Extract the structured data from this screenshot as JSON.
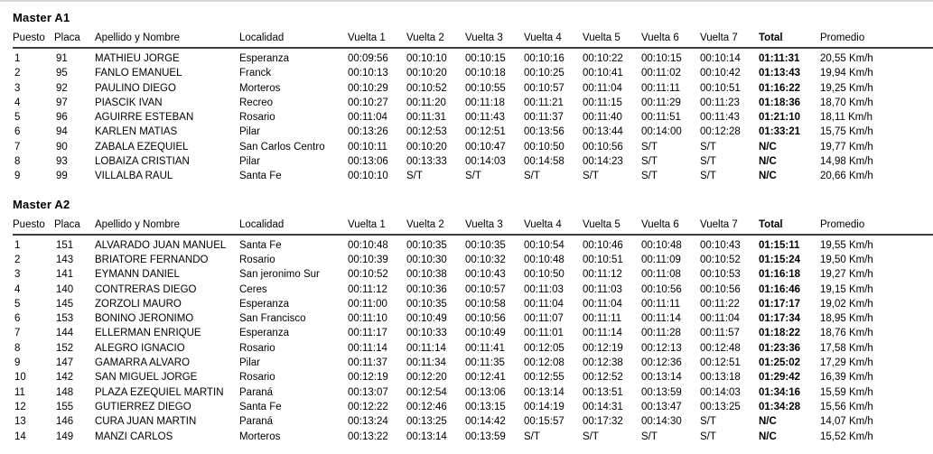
{
  "page": {
    "colors": {
      "text": "#000000",
      "header_rule": "#3d3d3d",
      "top_border": "#d8d8d8",
      "background": "#ffffff"
    },
    "sections": [
      {
        "title": "Master A1",
        "columns": [
          "Puesto",
          "Placa",
          "Apellido y Nombre",
          "Localidad",
          "Vuelta 1",
          "Vuelta 2",
          "Vuelta 3",
          "Vuelta 4",
          "Vuelta 5",
          "Vuelta 6",
          "Vuelta 7",
          "Total",
          "Promedio"
        ],
        "rows": [
          [
            "1",
            "91",
            "MATHIEU JORGE",
            "Esperanza",
            "00:09:56",
            "00:10:10",
            "00:10:15",
            "00:10:16",
            "00:10:22",
            "00:10:15",
            "00:10:14",
            "01:11:31",
            "20,55 Km/h"
          ],
          [
            "2",
            "95",
            "FANLO EMANUEL",
            "Franck",
            "00:10:13",
            "00:10:20",
            "00:10:18",
            "00:10:25",
            "00:10:41",
            "00:11:02",
            "00:10:42",
            "01:13:43",
            "19,94 Km/h"
          ],
          [
            "3",
            "92",
            "PAULINO DIEGO",
            "Morteros",
            "00:10:29",
            "00:10:52",
            "00:10:55",
            "00:10:57",
            "00:11:04",
            "00:11:11",
            "00:10:51",
            "01:16:22",
            "19,25 Km/h"
          ],
          [
            "4",
            "97",
            "PIASCIK IVAN",
            "Recreo",
            "00:10:27",
            "00:11:20",
            "00:11:18",
            "00:11:21",
            "00:11:15",
            "00:11:29",
            "00:11:23",
            "01:18:36",
            "18,70 Km/h"
          ],
          [
            "5",
            "96",
            "AGUIRRE ESTEBAN",
            "Rosario",
            "00:11:04",
            "00:11:31",
            "00:11:43",
            "00:11:37",
            "00:11:40",
            "00:11:51",
            "00:11:43",
            "01:21:10",
            "18,11 Km/h"
          ],
          [
            "6",
            "94",
            "KARLEN MATIAS",
            "Pilar",
            "00:13:26",
            "00:12:53",
            "00:12:51",
            "00:13:56",
            "00:13:44",
            "00:14:00",
            "00:12:28",
            "01:33:21",
            "15,75 Km/h"
          ],
          [
            "7",
            "90",
            "ZABALA EZEQUIEL",
            "San Carlos Centro",
            "00:10:11",
            "00:10:20",
            "00:10:47",
            "00:10:50",
            "00:10:56",
            "S/T",
            "S/T",
            "N/C",
            "19,77 Km/h"
          ],
          [
            "8",
            "93",
            "LOBAIZA CRISTIAN",
            "Pilar",
            "00:13:06",
            "00:13:33",
            "00:14:03",
            "00:14:58",
            "00:14:23",
            "S/T",
            "S/T",
            "N/C",
            "14,98 Km/h"
          ],
          [
            "9",
            "99",
            "VILLALBA RAUL",
            "Santa Fe",
            "00:10:10",
            "S/T",
            "S/T",
            "S/T",
            "S/T",
            "S/T",
            "S/T",
            "N/C",
            "20,66 Km/h"
          ]
        ]
      },
      {
        "title": "Master A2",
        "columns": [
          "Puesto",
          "Placa",
          "Apellido y Nombre",
          "Localidad",
          "Vuelta 1",
          "Vuelta 2",
          "Vuelta 3",
          "Vuelta 4",
          "Vuelta 5",
          "Vuelta 6",
          "Vuelta 7",
          "Total",
          "Promedio"
        ],
        "rows": [
          [
            "1",
            "151",
            "ALVARADO JUAN MANUEL",
            "Santa Fe",
            "00:10:48",
            "00:10:35",
            "00:10:35",
            "00:10:54",
            "00:10:46",
            "00:10:48",
            "00:10:43",
            "01:15:11",
            "19,55 Km/h"
          ],
          [
            "2",
            "143",
            "BRIATORE FERNANDO",
            "Rosario",
            "00:10:39",
            "00:10:30",
            "00:10:32",
            "00:10:48",
            "00:10:51",
            "00:11:09",
            "00:10:52",
            "01:15:24",
            "19,50 Km/h"
          ],
          [
            "3",
            "141",
            "EYMANN DANIEL",
            "San jeronimo Sur",
            "00:10:52",
            "00:10:38",
            "00:10:43",
            "00:10:50",
            "00:11:12",
            "00:11:08",
            "00:10:53",
            "01:16:18",
            "19,27 Km/h"
          ],
          [
            "4",
            "140",
            "CONTRERAS DIEGO",
            "Ceres",
            "00:11:12",
            "00:10:36",
            "00:10:57",
            "00:11:03",
            "00:11:03",
            "00:10:56",
            "00:10:56",
            "01:16:46",
            "19,15 Km/h"
          ],
          [
            "5",
            "145",
            "ZORZOLI MAURO",
            "Esperanza",
            "00:11:00",
            "00:10:35",
            "00:10:58",
            "00:11:04",
            "00:11:04",
            "00:11:11",
            "00:11:22",
            "01:17:17",
            "19,02 Km/h"
          ],
          [
            "6",
            "153",
            "BONINO JERONIMO",
            "San Francisco",
            "00:11:10",
            "00:10:49",
            "00:10:56",
            "00:11:07",
            "00:11:11",
            "00:11:14",
            "00:11:04",
            "01:17:34",
            "18,95 Km/h"
          ],
          [
            "7",
            "144",
            "ELLERMAN ENRIQUE",
            "Esperanza",
            "00:11:17",
            "00:10:33",
            "00:10:49",
            "00:11:01",
            "00:11:14",
            "00:11:28",
            "00:11:57",
            "01:18:22",
            "18,76 Km/h"
          ],
          [
            "8",
            "152",
            "ALEGRO IGNACIO",
            "Rosario",
            "00:11:14",
            "00:11:14",
            "00:11:41",
            "00:12:05",
            "00:12:19",
            "00:12:13",
            "00:12:48",
            "01:23:36",
            "17,58 Km/h"
          ],
          [
            "9",
            "147",
            "GAMARRA ALVARO",
            "Pilar",
            "00:11:37",
            "00:11:34",
            "00:11:35",
            "00:12:08",
            "00:12:38",
            "00:12:36",
            "00:12:51",
            "01:25:02",
            "17,29 Km/h"
          ],
          [
            "10",
            "142",
            "SAN MIGUEL JORGE",
            "Rosario",
            "00:12:19",
            "00:12:20",
            "00:12:41",
            "00:12:55",
            "00:12:52",
            "00:13:14",
            "00:13:18",
            "01:29:42",
            "16,39 Km/h"
          ],
          [
            "11",
            "148",
            "PLAZA EZEQUIEL MARTIN",
            "Paraná",
            "00:13:07",
            "00:12:54",
            "00:13:06",
            "00:13:14",
            "00:13:51",
            "00:13:59",
            "00:14:03",
            "01:34:16",
            "15,59 Km/h"
          ],
          [
            "12",
            "155",
            "GUTIERREZ DIEGO",
            "Santa Fe",
            "00:12:22",
            "00:12:46",
            "00:13:15",
            "00:14:19",
            "00:14:31",
            "00:13:47",
            "00:13:25",
            "01:34:28",
            "15,56 Km/h"
          ],
          [
            "13",
            "146",
            "CURA JUAN MARTIN",
            "Paraná",
            "00:13:24",
            "00:13:25",
            "00:14:42",
            "00:15:57",
            "00:17:32",
            "00:14:30",
            "S/T",
            "N/C",
            "14,07 Km/h"
          ],
          [
            "14",
            "149",
            "MANZI CARLOS",
            "Morteros",
            "00:13:22",
            "00:13:14",
            "00:13:59",
            "S/T",
            "S/T",
            "S/T",
            "S/T",
            "N/C",
            "15,52 Km/h"
          ]
        ]
      }
    ]
  }
}
